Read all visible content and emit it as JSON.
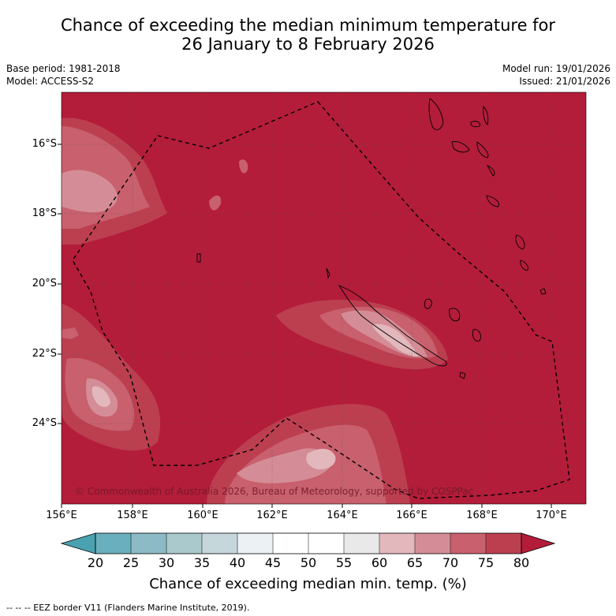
{
  "title_line1": "Chance of exceeding the median minimum temperature for",
  "title_line2": "26 January to 8 February 2026",
  "base_period": "Base period: 1981-2018",
  "model": "Model: ACCESS-S2",
  "model_run": "Model run: 19/01/2026",
  "issued": "Issued: 21/01/2026",
  "lat_labels": [
    "16°S",
    "18°S",
    "20°S",
    "22°S",
    "24°S"
  ],
  "lon_labels": [
    "156°E",
    "158°E",
    "160°E",
    "162°E",
    "164°E",
    "166°E",
    "168°E",
    "170°E"
  ],
  "copyright": "© Commonwealth of Australia 2026, Bureau of Meteorology, supported by COSPPac",
  "colorbar": {
    "labels": [
      "20",
      "25",
      "30",
      "35",
      "40",
      "45",
      "50",
      "55",
      "60",
      "65",
      "70",
      "75",
      "80"
    ],
    "colors": [
      "#6aafbd",
      "#8cbac5",
      "#aac9cd",
      "#c6d7dc",
      "#ecf2f3",
      "#ffffff",
      "#ffffff",
      "#e9e9e9",
      "#e2b8bd",
      "#d48d96",
      "#c8606d",
      "#bc3f50"
    ],
    "under_color": "#4aa1b0",
    "over_color": "#b31d3a",
    "title": "Chance of exceeding median min. temp. (%)"
  },
  "legend_text": "--  --  -- EEZ border V11 (Flanders Marine Institute, 2019).",
  "map": {
    "background_color": "#b31d3a"
  }
}
